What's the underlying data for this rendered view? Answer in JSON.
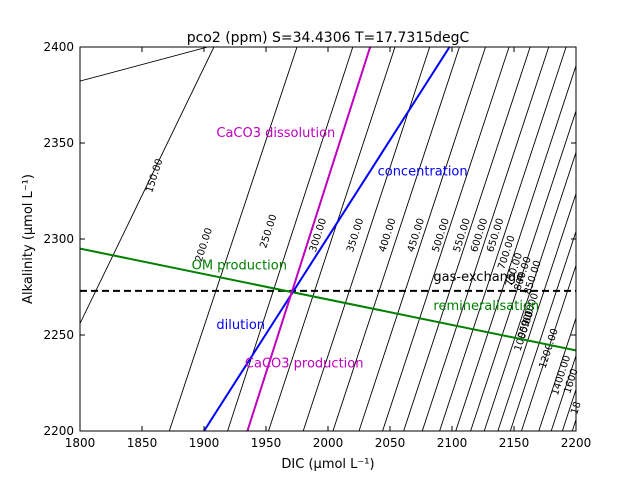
{
  "chart_data": {
    "type": "line",
    "title": "pco2 (ppm) S=34.4306 T=17.7315degC",
    "xlabel": "DIC (μmol L⁻¹)",
    "ylabel": "Alkalinity (μmol L⁻¹)",
    "xlim": [
      1800,
      2200
    ],
    "ylim": [
      2200,
      2400
    ],
    "xticks": [
      "1800",
      "1850",
      "1900",
      "1950",
      "2000",
      "2050",
      "2100",
      "2150",
      "2200"
    ],
    "yticks": [
      "2200",
      "2250",
      "2300",
      "2350",
      "2400"
    ],
    "grid": false,
    "contours": [
      {
        "level": "150.00",
        "line": [
          [
            1787,
            2380
          ],
          [
            1903,
            2400
          ]
        ],
        "slope": 2.0,
        "label_at": [
          1860,
          2333
        ]
      },
      {
        "level": "200.00",
        "line": [
          [
            1800,
            2256
          ],
          [
            1908,
            2400
          ]
        ],
        "slope": 2.0,
        "label_at": [
          1900,
          2297
        ]
      },
      {
        "level": "250.00",
        "line": [
          [
            1872,
            2200
          ],
          [
            1975,
            2400
          ]
        ],
        "slope": 2.0,
        "label_at": [
          1952,
          2304
        ]
      },
      {
        "level": "300.00",
        "line": [
          [
            1919,
            2200
          ],
          [
            2020,
            2400
          ]
        ],
        "slope": 2.0,
        "label_at": [
          1992,
          2302
        ]
      },
      {
        "level": "350.00",
        "line": [
          [
            1952,
            2200
          ],
          [
            2054,
            2400
          ]
        ],
        "slope": 2.0,
        "label_at": [
          2022,
          2302
        ]
      },
      {
        "level": "400.00",
        "line": [
          [
            1980,
            2200
          ],
          [
            2082,
            2400
          ]
        ],
        "slope": 2.0,
        "label_at": [
          2048,
          2302
        ]
      },
      {
        "level": "450.00",
        "line": [
          [
            2004,
            2200
          ],
          [
            2106,
            2400
          ]
        ],
        "slope": 2.0,
        "label_at": [
          2071,
          2302
        ]
      },
      {
        "level": "500.00",
        "line": [
          [
            2025,
            2200
          ],
          [
            2127,
            2400
          ]
        ],
        "slope": 2.0,
        "label_at": [
          2091,
          2302
        ]
      },
      {
        "level": "550.00",
        "line": [
          [
            2044,
            2200
          ],
          [
            2146,
            2400
          ]
        ],
        "slope": 2.0,
        "label_at": [
          2108,
          2302
        ]
      },
      {
        "level": "600.00",
        "line": [
          [
            2061,
            2200
          ],
          [
            2163,
            2400
          ]
        ],
        "slope": 2.0,
        "label_at": [
          2122,
          2302
        ]
      },
      {
        "level": "650.00",
        "line": [
          [
            2076,
            2200
          ],
          [
            2178,
            2400
          ]
        ],
        "slope": 2.0,
        "label_at": [
          2135,
          2302
        ]
      },
      {
        "level": "700.00",
        "line": [
          [
            2090,
            2200
          ],
          [
            2192,
            2400
          ]
        ],
        "slope": 2.0,
        "label_at": [
          2144,
          2293
        ]
      },
      {
        "level": "750.00",
        "line": [
          [
            2103,
            2200
          ],
          [
            2205,
            2400
          ]
        ],
        "slope": 2.0,
        "label_at": [
          2150,
          2284
        ]
      },
      {
        "level": "800.00",
        "line": [
          [
            2115,
            2200
          ],
          [
            2217,
            2400
          ]
        ],
        "slope": 2.0,
        "label_at": [
          2157,
          2282
        ]
      },
      {
        "level": "850.00",
        "line": [
          [
            2126,
            2200
          ],
          [
            2228,
            2400
          ]
        ],
        "slope": 2.0,
        "label_at": [
          2165,
          2280
        ]
      },
      {
        "level": "900.00",
        "line": [
          [
            2137,
            2200
          ],
          [
            2239,
            2400
          ]
        ],
        "slope": 2.0,
        "label_at": [
          2163,
          2263
        ]
      },
      {
        "level": "950.00",
        "line": [
          [
            2147,
            2200
          ],
          [
            2249,
            2400
          ]
        ],
        "slope": 2.0,
        "label_at": [
          2160,
          2257
        ]
      },
      {
        "level": "1000.00",
        "line": [
          [
            2156,
            2200
          ],
          [
            2258,
            2400
          ]
        ],
        "slope": 2.0,
        "label_at": [
          2158,
          2252
        ]
      },
      {
        "level": "1200.00",
        "line": [
          [
            2170,
            2200
          ],
          [
            2272,
            2400
          ]
        ],
        "slope": 2.0,
        "label_at": [
          2178,
          2243
        ]
      },
      {
        "level": "1400.00",
        "line": [
          [
            2180,
            2200
          ],
          [
            2282,
            2400
          ]
        ],
        "slope": 2.0,
        "label_at": [
          2188,
          2229
        ]
      },
      {
        "level": "1600",
        "line": [
          [
            2189,
            2200
          ],
          [
            2291,
            2400
          ]
        ],
        "slope": 2.0,
        "label_at": [
          2196,
          2226
        ]
      },
      {
        "level": "18",
        "line": [
          [
            2197,
            2200
          ],
          [
            2299,
            2400
          ]
        ],
        "slope": 2.0,
        "label_at": [
          2200,
          2212
        ]
      }
    ],
    "series": [
      {
        "name": "gas-exchange",
        "color": "#000000",
        "style": "dashed",
        "x": [
          1800,
          2200
        ],
        "y": [
          2273,
          2273
        ]
      },
      {
        "name": "OM production / remineralisation",
        "color": "#008000",
        "style": "solid",
        "x": [
          1800,
          2200
        ],
        "y": [
          2295,
          2242
        ]
      },
      {
        "name": "dilution / concentration",
        "color": "#0000ff",
        "style": "solid",
        "x": [
          1900,
          2098
        ],
        "y": [
          2200,
          2400
        ]
      },
      {
        "name": "CaCO3 dissolution / production",
        "color": "#bf00bf",
        "style": "solid",
        "x": [
          1935,
          2034
        ],
        "y": [
          2200,
          2400
        ]
      }
    ],
    "annotations": [
      {
        "text": "CaCO3 dissolution",
        "color": "#bf00bf",
        "at": [
          1910,
          2353
        ]
      },
      {
        "text": "concentration",
        "color": "#0000ff",
        "at": [
          2040,
          2333
        ]
      },
      {
        "text": "OM production",
        "color": "#008000",
        "at": [
          1890,
          2284
        ]
      },
      {
        "text": "gas-exchange",
        "color": "#000000",
        "at": [
          2085,
          2278
        ]
      },
      {
        "text": "remineralisation",
        "color": "#008000",
        "at": [
          2085,
          2263
        ]
      },
      {
        "text": "dilution",
        "color": "#0000ff",
        "at": [
          1910,
          2253
        ]
      },
      {
        "text": "CaCO3 production",
        "color": "#bf00bf",
        "at": [
          1933,
          2233
        ]
      }
    ]
  }
}
